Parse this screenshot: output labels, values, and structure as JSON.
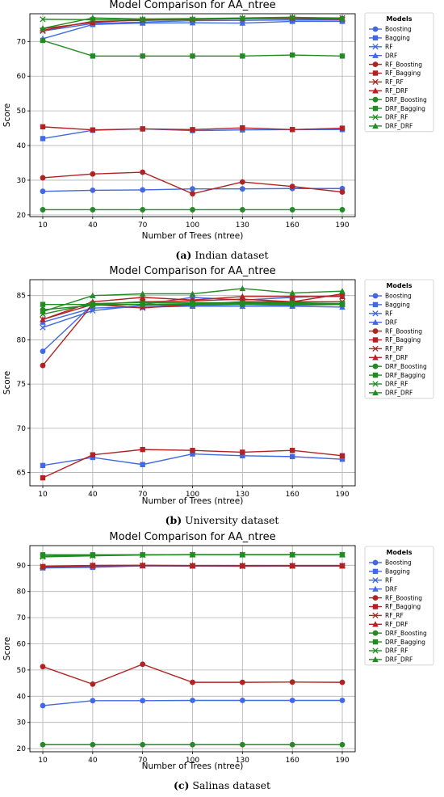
{
  "legend_title": "Models",
  "xlabel": "Number of Trees (ntree)",
  "ylabel": "Score",
  "series_styles": [
    {
      "name": "Boosting",
      "color": "#4169E1",
      "marker": "circle"
    },
    {
      "name": "Bagging",
      "color": "#4169E1",
      "marker": "square"
    },
    {
      "name": "RF",
      "color": "#4169E1",
      "marker": "x"
    },
    {
      "name": "DRF",
      "color": "#4169E1",
      "marker": "triangle"
    },
    {
      "name": "RF_Boosting",
      "color": "#B22222",
      "marker": "circle"
    },
    {
      "name": "RF_Bagging",
      "color": "#B22222",
      "marker": "square"
    },
    {
      "name": "RF_RF",
      "color": "#B22222",
      "marker": "x"
    },
    {
      "name": "RF_DRF",
      "color": "#B22222",
      "marker": "triangle"
    },
    {
      "name": "DRF_Boosting",
      "color": "#228B22",
      "marker": "circle"
    },
    {
      "name": "DRF_Bagging",
      "color": "#228B22",
      "marker": "square"
    },
    {
      "name": "DRF_RF",
      "color": "#228B22",
      "marker": "x"
    },
    {
      "name": "DRF_DRF",
      "color": "#228B22",
      "marker": "triangle"
    }
  ],
  "chart_data": [
    {
      "type": "line",
      "title": "Model Comparison for AA_ntree",
      "caption_label": "(a)",
      "caption_text": " Indian dataset",
      "xlabel": "Number of Trees (ntree)",
      "ylabel": "Score",
      "x": [
        10,
        40,
        70,
        100,
        130,
        160,
        190
      ],
      "ylim": [
        19.5,
        78
      ],
      "yticks": [
        20,
        30,
        40,
        50,
        60,
        70,
        80
      ],
      "grid": true,
      "legend_position": "outside-right",
      "series": [
        {
          "name": "Boosting",
          "values": [
            26.8,
            27.1,
            27.2,
            27.5,
            27.5,
            27.6,
            27.6
          ]
        },
        {
          "name": "Bagging",
          "values": [
            42.0,
            44.4,
            44.8,
            44.3,
            44.5,
            44.6,
            44.6
          ]
        },
        {
          "name": "RF",
          "values": [
            73.0,
            75.2,
            75.6,
            76.0,
            76.1,
            76.2,
            76.2
          ]
        },
        {
          "name": "DRF",
          "values": [
            70.8,
            74.9,
            75.3,
            75.4,
            75.3,
            75.8,
            75.8
          ]
        },
        {
          "name": "RF_Boosting",
          "values": [
            30.7,
            31.8,
            32.3,
            26.1,
            29.5,
            28.2,
            26.6
          ]
        },
        {
          "name": "RF_Bagging",
          "values": [
            45.4,
            44.5,
            44.8,
            44.6,
            45.1,
            44.6,
            45.0
          ]
        },
        {
          "name": "RF_RF",
          "values": [
            73.2,
            75.8,
            76.1,
            76.3,
            76.6,
            76.6,
            76.4
          ]
        },
        {
          "name": "RF_DRF",
          "values": [
            73.7,
            75.5,
            76.3,
            76.5,
            76.6,
            76.8,
            76.8
          ]
        },
        {
          "name": "DRF_Boosting",
          "values": [
            21.5,
            21.5,
            21.5,
            21.5,
            21.5,
            21.5,
            21.5
          ]
        },
        {
          "name": "DRF_Bagging",
          "values": [
            70.3,
            65.8,
            65.8,
            65.8,
            65.8,
            66.1,
            65.8
          ]
        },
        {
          "name": "DRF_RF",
          "values": [
            76.4,
            76.3,
            76.4,
            76.4,
            76.7,
            76.9,
            76.8
          ]
        },
        {
          "name": "DRF_DRF",
          "values": [
            73.8,
            76.8,
            76.5,
            76.6,
            76.8,
            77.0,
            76.6
          ]
        }
      ]
    },
    {
      "type": "line",
      "title": "Model Comparison for AA_ntree",
      "caption_label": "(b)",
      "caption_text": " University dataset",
      "xlabel": "Number of Trees (ntree)",
      "ylabel": "Score",
      "x": [
        10,
        40,
        70,
        100,
        130,
        160,
        190
      ],
      "ylim": [
        63.5,
        86.8
      ],
      "yticks": [
        65,
        70,
        75,
        80,
        85
      ],
      "grid": true,
      "legend_position": "outside-right",
      "series": [
        {
          "name": "Boosting",
          "values": [
            78.7,
            84.0,
            84.0,
            84.8,
            84.5,
            84.8,
            85.0
          ]
        },
        {
          "name": "Bagging",
          "values": [
            65.8,
            66.7,
            65.9,
            67.1,
            66.9,
            66.8,
            66.5
          ]
        },
        {
          "name": "RF",
          "values": [
            81.4,
            83.3,
            83.9,
            83.9,
            83.8,
            83.9,
            84.0
          ]
        },
        {
          "name": "DRF",
          "values": [
            82.0,
            83.6,
            83.7,
            83.8,
            83.8,
            83.8,
            83.7
          ]
        },
        {
          "name": "RF_Boosting",
          "values": [
            77.1,
            84.0,
            84.3,
            84.4,
            84.6,
            84.3,
            85.2
          ]
        },
        {
          "name": "RF_Bagging",
          "values": [
            64.4,
            67.0,
            67.6,
            67.5,
            67.3,
            67.5,
            66.9
          ]
        },
        {
          "name": "RF_RF",
          "values": [
            82.3,
            84.0,
            83.6,
            84.0,
            84.3,
            84.3,
            84.3
          ]
        },
        {
          "name": "RF_DRF",
          "values": [
            82.3,
            84.3,
            84.8,
            84.5,
            84.9,
            84.9,
            84.9
          ]
        },
        {
          "name": "DRF_Boosting",
          "values": [
            83.4,
            83.9,
            84.0,
            84.1,
            84.1,
            84.1,
            84.1
          ]
        },
        {
          "name": "DRF_Bagging",
          "values": [
            84.0,
            84.0,
            84.0,
            84.0,
            84.0,
            84.0,
            84.0
          ]
        },
        {
          "name": "DRF_RF",
          "values": [
            82.9,
            84.1,
            84.2,
            84.2,
            84.2,
            84.2,
            84.1
          ]
        },
        {
          "name": "DRF_DRF",
          "values": [
            83.2,
            85.0,
            85.2,
            85.2,
            85.8,
            85.3,
            85.5
          ]
        }
      ]
    },
    {
      "type": "line",
      "title": "Model Comparison for AA_ntree",
      "caption_label": "(c)",
      "caption_text": " Salinas dataset",
      "xlabel": "Number of Trees (ntree)",
      "ylabel": "Score",
      "x": [
        10,
        40,
        70,
        100,
        130,
        160,
        190
      ],
      "ylim": [
        18.8,
        97.5
      ],
      "yticks": [
        20,
        30,
        40,
        50,
        60,
        70,
        80,
        90
      ],
      "grid": true,
      "legend_position": "outside-right",
      "series": [
        {
          "name": "Boosting",
          "values": [
            36.4,
            38.3,
            38.3,
            38.4,
            38.4,
            38.4,
            38.4
          ]
        },
        {
          "name": "Bagging",
          "values": [
            89.0,
            89.2,
            89.8,
            89.7,
            89.7,
            89.7,
            89.7
          ]
        },
        {
          "name": "RF",
          "values": [
            89.0,
            89.5,
            89.8,
            89.7,
            89.6,
            89.7,
            89.8
          ]
        },
        {
          "name": "DRF",
          "values": [
            89.5,
            89.5,
            89.8,
            89.8,
            89.8,
            89.8,
            89.8
          ]
        },
        {
          "name": "RF_Boosting",
          "values": [
            51.3,
            44.6,
            52.2,
            45.3,
            45.3,
            45.4,
            45.3
          ]
        },
        {
          "name": "RF_Bagging",
          "values": [
            89.4,
            89.9,
            89.9,
            89.8,
            89.8,
            89.8,
            89.8
          ]
        },
        {
          "name": "RF_RF",
          "values": [
            89.5,
            89.9,
            89.9,
            89.8,
            89.8,
            89.8,
            89.8
          ]
        },
        {
          "name": "RF_DRF",
          "values": [
            89.6,
            89.9,
            90.0,
            89.9,
            89.9,
            89.9,
            89.9
          ]
        },
        {
          "name": "DRF_Boosting",
          "values": [
            21.5,
            21.5,
            21.5,
            21.5,
            21.5,
            21.5,
            21.5
          ]
        },
        {
          "name": "DRF_Bagging",
          "values": [
            94.0,
            94.0,
            94.0,
            94.0,
            94.0,
            94.0,
            94.0
          ]
        },
        {
          "name": "DRF_RF",
          "values": [
            93.2,
            93.6,
            93.9,
            94.0,
            94.0,
            94.0,
            94.0
          ]
        },
        {
          "name": "DRF_DRF",
          "values": [
            93.5,
            93.8,
            94.0,
            94.1,
            94.1,
            94.1,
            94.1
          ]
        }
      ]
    }
  ]
}
